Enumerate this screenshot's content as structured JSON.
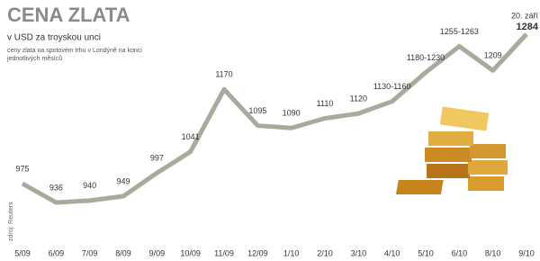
{
  "chart_data": {
    "type": "line",
    "title": "CENA ZLATA",
    "subtitle": "v USD za troyskou unci",
    "note": "ceny zlata na spotovém trhu v Londýně na konci jednotlivých měsíců",
    "source": "zdroj: Reuters",
    "annotation": "20. září",
    "categories": [
      "5/09",
      "6/09",
      "7/09",
      "8/09",
      "9/09",
      "10/09",
      "11/09",
      "12/09",
      "1/10",
      "2/10",
      "3/10",
      "4/10",
      "5/10",
      "6/10",
      "8/10",
      "9/10"
    ],
    "values": [
      975,
      936,
      940,
      949,
      997,
      1041,
      1170,
      1095,
      1090,
      1110,
      1120,
      1145,
      1205,
      1259,
      1209,
      1284
    ],
    "value_labels": [
      "975",
      "936",
      "940",
      "949",
      "997",
      "1041",
      "1170",
      "1095",
      "1090",
      "1110",
      "1120",
      "1130-1160",
      "1180-1230",
      "1255-1263",
      "1209",
      "1284"
    ],
    "color": "#a8aa9c"
  }
}
